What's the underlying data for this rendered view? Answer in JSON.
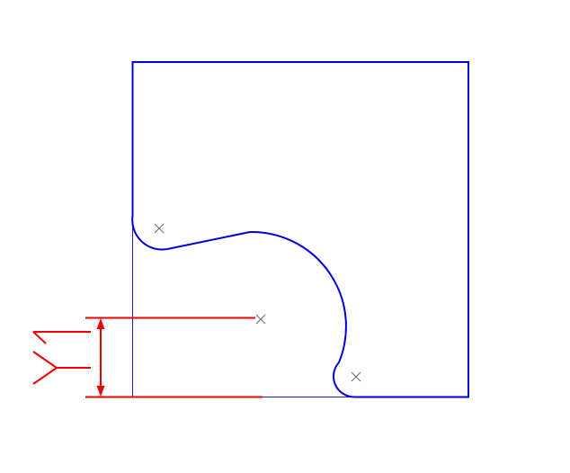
{
  "drawing": {
    "colors": {
      "background": "#ffffff",
      "outline": "#0000dd",
      "construction": "#2020c0",
      "dimension": "#ee0000",
      "center_mark": "#5a6a7a"
    },
    "center_marks": [
      {
        "name": "fillet-upper-left-center"
      },
      {
        "name": "arc-large-center"
      },
      {
        "name": "fillet-lower-center"
      }
    ],
    "dimension": {
      "annotation_icon": "fork-symbol-icon",
      "arrowheads": "both-ends"
    }
  }
}
